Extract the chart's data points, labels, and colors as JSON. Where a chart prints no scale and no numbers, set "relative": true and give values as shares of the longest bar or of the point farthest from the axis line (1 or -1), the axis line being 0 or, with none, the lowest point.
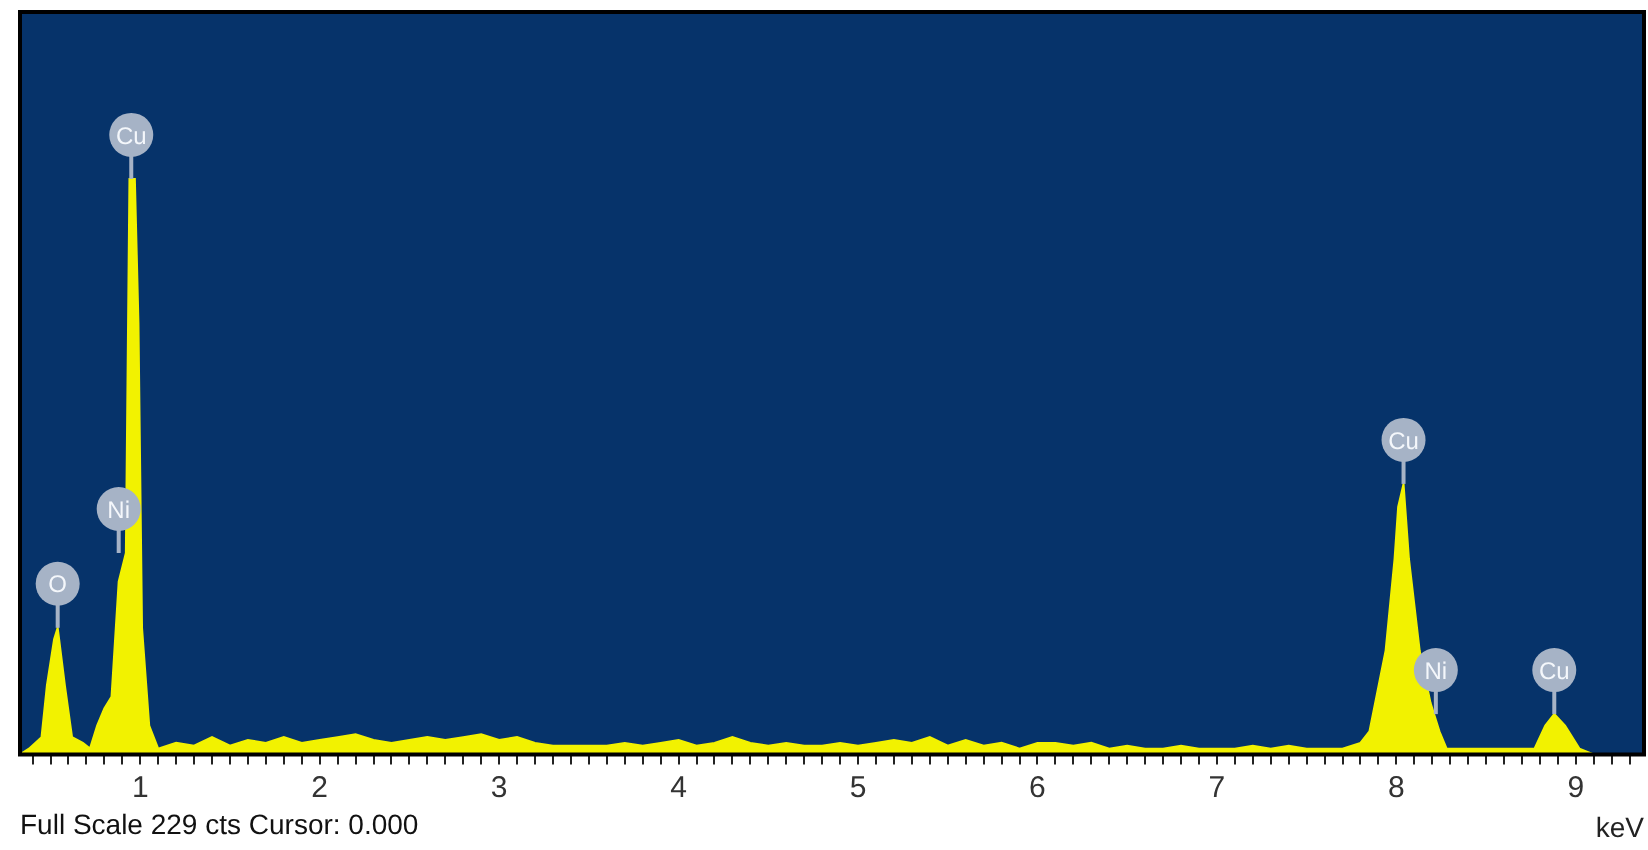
{
  "chart_data": {
    "type": "area",
    "relative": true,
    "xlabel": "keV",
    "marker": "none",
    "grid": false,
    "legend": false,
    "xlim": [
      0.33,
      9.38
    ],
    "xticks": [
      {
        "value": 0.4,
        "label": null
      },
      {
        "value": 0.5,
        "label": null
      },
      {
        "value": 0.6,
        "label": null
      },
      {
        "value": 0.7,
        "label": null
      },
      {
        "value": 0.8,
        "label": null
      },
      {
        "value": 0.9,
        "label": null
      },
      1,
      {
        "value": 1.1,
        "label": null
      },
      {
        "value": 1.2,
        "label": null
      },
      {
        "value": 1.3,
        "label": null
      },
      {
        "value": 1.4,
        "label": null
      },
      {
        "value": 1.5,
        "label": null
      },
      {
        "value": 1.6,
        "label": null
      },
      {
        "value": 1.7,
        "label": null
      },
      {
        "value": 1.8,
        "label": null
      },
      {
        "value": 1.9,
        "label": null
      },
      2,
      {
        "value": 2.1,
        "label": null
      },
      {
        "value": 2.2,
        "label": null
      },
      {
        "value": 2.3,
        "label": null
      },
      {
        "value": 2.4,
        "label": null
      },
      {
        "value": 2.5,
        "label": null
      },
      {
        "value": 2.6,
        "label": null
      },
      {
        "value": 2.7,
        "label": null
      },
      {
        "value": 2.8,
        "label": null
      },
      {
        "value": 2.9,
        "label": null
      },
      3,
      {
        "value": 3.1,
        "label": null
      },
      {
        "value": 3.2,
        "label": null
      },
      {
        "value": 3.3,
        "label": null
      },
      {
        "value": 3.4,
        "label": null
      },
      {
        "value": 3.5,
        "label": null
      },
      {
        "value": 3.6,
        "label": null
      },
      {
        "value": 3.7,
        "label": null
      },
      {
        "value": 3.8,
        "label": null
      },
      {
        "value": 3.9,
        "label": null
      },
      4,
      {
        "value": 4.1,
        "label": null
      },
      {
        "value": 4.2,
        "label": null
      },
      {
        "value": 4.3,
        "label": null
      },
      {
        "value": 4.4,
        "label": null
      },
      {
        "value": 4.5,
        "label": null
      },
      {
        "value": 4.6,
        "label": null
      },
      {
        "value": 4.7,
        "label": null
      },
      {
        "value": 4.8,
        "label": null
      },
      {
        "value": 4.9,
        "label": null
      },
      5,
      {
        "value": 5.1,
        "label": null
      },
      {
        "value": 5.2,
        "label": null
      },
      {
        "value": 5.3,
        "label": null
      },
      {
        "value": 5.4,
        "label": null
      },
      {
        "value": 5.5,
        "label": null
      },
      {
        "value": 5.6,
        "label": null
      },
      {
        "value": 5.7,
        "label": null
      },
      {
        "value": 5.8,
        "label": null
      },
      {
        "value": 5.9,
        "label": null
      },
      6,
      {
        "value": 6.1,
        "label": null
      },
      {
        "value": 6.2,
        "label": null
      },
      {
        "value": 6.3,
        "label": null
      },
      {
        "value": 6.4,
        "label": null
      },
      {
        "value": 6.5,
        "label": null
      },
      {
        "value": 6.6,
        "label": null
      },
      {
        "value": 6.7,
        "label": null
      },
      {
        "value": 6.8,
        "label": null
      },
      {
        "value": 6.9,
        "label": null
      },
      7,
      {
        "value": 7.1,
        "label": null
      },
      {
        "value": 7.2,
        "label": null
      },
      {
        "value": 7.3,
        "label": null
      },
      {
        "value": 7.4,
        "label": null
      },
      {
        "value": 7.5,
        "label": null
      },
      {
        "value": 7.6,
        "label": null
      },
      {
        "value": 7.7,
        "label": null
      },
      {
        "value": 7.8,
        "label": null
      },
      {
        "value": 7.9,
        "label": null
      },
      8,
      {
        "value": 8.1,
        "label": null
      },
      {
        "value": 8.2,
        "label": null
      },
      {
        "value": 8.3,
        "label": null
      },
      {
        "value": 8.4,
        "label": null
      },
      {
        "value": 8.5,
        "label": null
      },
      {
        "value": 8.6,
        "label": null
      },
      {
        "value": 8.7,
        "label": null
      },
      {
        "value": 8.8,
        "label": null
      },
      {
        "value": 8.9,
        "label": null
      },
      9,
      {
        "value": 9.1,
        "label": null
      },
      {
        "value": 9.2,
        "label": null
      },
      {
        "value": 9.3,
        "label": null
      }
    ],
    "series": [
      {
        "color": "#f2f200",
        "x": [
          0.33,
          0.38,
          0.45,
          0.48,
          0.52,
          0.54,
          0.58,
          0.62,
          0.68,
          0.72,
          0.76,
          0.8,
          0.84,
          0.88,
          0.92,
          0.94,
          0.97,
          0.99,
          1.01,
          1.05,
          1.1,
          1.2,
          1.3,
          1.4,
          1.5,
          1.6,
          1.7,
          1.8,
          1.9,
          2.0,
          2.1,
          2.2,
          2.3,
          2.4,
          2.5,
          2.6,
          2.7,
          2.8,
          2.9,
          3.0,
          3.1,
          3.2,
          3.3,
          3.4,
          3.5,
          3.6,
          3.7,
          3.8,
          3.9,
          4.0,
          4.1,
          4.2,
          4.3,
          4.4,
          4.5,
          4.6,
          4.7,
          4.8,
          4.9,
          5.0,
          5.1,
          5.2,
          5.3,
          5.4,
          5.5,
          5.6,
          5.7,
          5.8,
          5.9,
          6.0,
          6.1,
          6.2,
          6.3,
          6.4,
          6.5,
          6.6,
          6.7,
          6.8,
          6.9,
          7.0,
          7.1,
          7.2,
          7.3,
          7.4,
          7.5,
          7.6,
          7.7,
          7.8,
          7.85,
          7.94,
          7.99,
          8.01,
          8.04,
          8.07,
          8.13,
          8.19,
          8.24,
          8.28,
          8.4,
          8.6,
          8.77,
          8.83,
          8.88,
          8.94,
          9.02,
          9.1,
          9.38
        ],
        "values": [
          0,
          0.01,
          0.03,
          0.12,
          0.2,
          0.22,
          0.12,
          0.03,
          0.02,
          0.01,
          0.05,
          0.08,
          0.1,
          0.3,
          0.35,
          1,
          1,
          0.75,
          0.22,
          0.05,
          0.01,
          0.02,
          0.015,
          0.03,
          0.015,
          0.025,
          0.02,
          0.03,
          0.02,
          0.025,
          0.03,
          0.035,
          0.025,
          0.02,
          0.025,
          0.03,
          0.025,
          0.03,
          0.035,
          0.025,
          0.03,
          0.02,
          0.015,
          0.015,
          0.015,
          0.015,
          0.02,
          0.015,
          0.02,
          0.025,
          0.015,
          0.02,
          0.03,
          0.02,
          0.015,
          0.02,
          0.015,
          0.015,
          0.02,
          0.015,
          0.02,
          0.025,
          0.02,
          0.03,
          0.015,
          0.025,
          0.015,
          0.02,
          0.01,
          0.02,
          0.02,
          0.015,
          0.02,
          0.01,
          0.015,
          0.01,
          0.01,
          0.015,
          0.01,
          0.01,
          0.01,
          0.015,
          0.01,
          0.015,
          0.01,
          0.01,
          0.01,
          0.02,
          0.04,
          0.18,
          0.34,
          0.43,
          0.47,
          0.34,
          0.18,
          0.09,
          0.04,
          0.01,
          0.01,
          0.01,
          0.01,
          0.05,
          0.07,
          0.05,
          0.01,
          0,
          0
        ]
      }
    ],
    "annotations": [
      {
        "text": "O",
        "x": 0.54,
        "y": 0.22
      },
      {
        "text": "Ni",
        "x": 0.88,
        "y": 0.35
      },
      {
        "text": "Cu",
        "x": 0.95,
        "y": 1
      },
      {
        "text": "Cu",
        "x": 8.04,
        "y": 0.47
      },
      {
        "text": "Ni",
        "x": 8.22,
        "y": 0.07
      },
      {
        "text": "Cu",
        "x": 8.88,
        "y": 0.07
      },
      "Full Scale 229 cts Cursor: 0.000"
    ]
  }
}
